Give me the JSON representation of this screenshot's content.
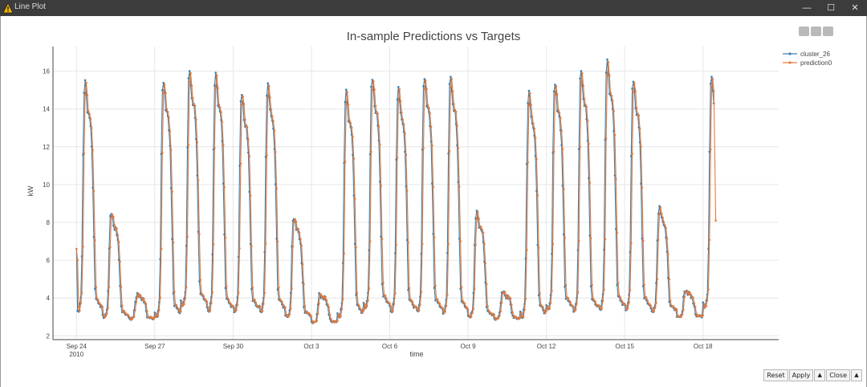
{
  "window": {
    "title": "Line Plot",
    "minimize_glyph": "—",
    "maximize_glyph": "☐",
    "close_glyph": "✕"
  },
  "buttons": {
    "reset": "Reset",
    "apply": "Apply",
    "apply_arrow": "▲",
    "close": "Close",
    "close_arrow": "▲"
  },
  "modebar": {
    "icons": [
      "camera-icon",
      "autoscale-icon",
      "menu-icon"
    ]
  },
  "colors": {
    "target": "#3a7dac",
    "prediction": "#e67a3a",
    "grid": "#e6e6e6"
  },
  "chart_data": {
    "type": "line",
    "title": "In-sample Predictions vs Targets",
    "xlabel": "time",
    "ylabel": "kW",
    "ylim": [
      1.8,
      17.3
    ],
    "x_unit": "days since Sep 24 2010",
    "xlim": [
      -0.9,
      26.9
    ],
    "yticks": [
      2,
      4,
      6,
      8,
      10,
      12,
      14,
      16
    ],
    "xticks": [
      {
        "value": 0,
        "label": "Sep 24",
        "sublabel": "2010"
      },
      {
        "value": 3,
        "label": "Sep 27"
      },
      {
        "value": 6,
        "label": "Sep 30"
      },
      {
        "value": 9,
        "label": "Oct 3"
      },
      {
        "value": 12,
        "label": "Oct 6"
      },
      {
        "value": 15,
        "label": "Oct 9"
      },
      {
        "value": 18,
        "label": "Oct 12"
      },
      {
        "value": 21,
        "label": "Oct 15"
      },
      {
        "value": 24,
        "label": "Oct 18"
      }
    ],
    "legend_position": "top-right",
    "series": [
      {
        "name": "cluster_26",
        "color": "#3a7dac",
        "daily_profile": [
          {
            "day": 0,
            "peak": 15.4,
            "base": 3.3,
            "start_value": 6.6
          },
          {
            "day": 1,
            "peak": 8.5,
            "base": 3.0
          },
          {
            "day": 2,
            "peak": 4.2,
            "base": 2.9
          },
          {
            "day": 3,
            "peak": 15.5,
            "base": 3.0
          },
          {
            "day": 4,
            "peak": 16.0,
            "base": 3.6
          },
          {
            "day": 5,
            "peak": 15.8,
            "base": 3.3
          },
          {
            "day": 6,
            "peak": 14.8,
            "base": 3.3
          },
          {
            "day": 7,
            "peak": 15.3,
            "base": 3.3
          },
          {
            "day": 8,
            "peak": 8.3,
            "base": 3.0
          },
          {
            "day": 9,
            "peak": 4.2,
            "base": 2.7
          },
          {
            "day": 10,
            "peak": 14.9,
            "base": 3.0
          },
          {
            "day": 11,
            "peak": 15.6,
            "base": 3.5
          },
          {
            "day": 12,
            "peak": 15.1,
            "base": 3.3
          },
          {
            "day": 13,
            "peak": 15.7,
            "base": 3.3
          },
          {
            "day": 14,
            "peak": 15.7,
            "base": 3.2
          },
          {
            "day": 15,
            "peak": 8.5,
            "base": 3.0
          },
          {
            "day": 16,
            "peak": 4.3,
            "base": 2.9
          },
          {
            "day": 17,
            "peak": 14.9,
            "base": 3.0
          },
          {
            "day": 18,
            "peak": 15.4,
            "base": 3.4
          },
          {
            "day": 19,
            "peak": 16.0,
            "base": 3.3
          },
          {
            "day": 20,
            "peak": 16.5,
            "base": 3.4
          },
          {
            "day": 21,
            "peak": 15.5,
            "base": 3.4
          },
          {
            "day": 22,
            "peak": 8.8,
            "base": 3.3
          },
          {
            "day": 23,
            "peak": 4.4,
            "base": 3.0
          },
          {
            "day": 24,
            "peak": 15.7,
            "base": 3.5
          }
        ]
      },
      {
        "name": "prediction0",
        "color": "#e67a3a",
        "daily_profile_note": "tracks cluster_26 with ~1 h lag and slightly lower peaks",
        "end_value": 8.1
      }
    ]
  }
}
